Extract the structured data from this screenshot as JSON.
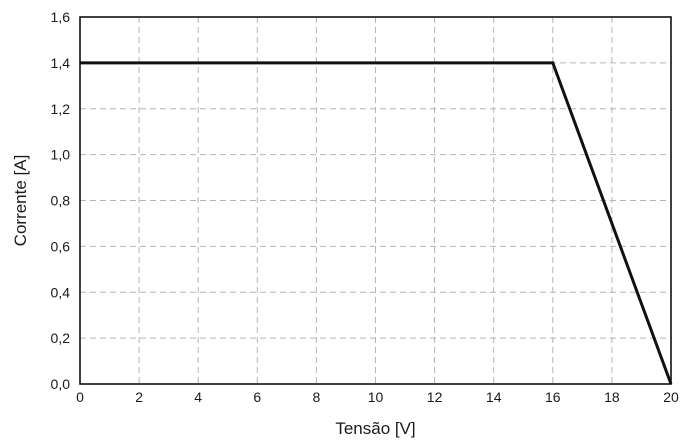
{
  "chart_data": {
    "type": "line",
    "xlabel": "Tensão [V]",
    "ylabel": "Corrente [A]",
    "xlim": [
      0,
      20
    ],
    "ylim": [
      0,
      1.6
    ],
    "grid": true,
    "x_ticks": [
      "0",
      "2",
      "4",
      "6",
      "8",
      "10",
      "12",
      "14",
      "16",
      "18",
      "20"
    ],
    "y_ticks": [
      "0,0",
      "0,2",
      "0,4",
      "0,6",
      "0,8",
      "1,0",
      "1,2",
      "1,4",
      "1,6"
    ],
    "series": [
      {
        "x": [
          0,
          16,
          20
        ],
        "y": [
          1.4,
          1.4,
          0.0
        ],
        "color": "#111111"
      }
    ]
  }
}
